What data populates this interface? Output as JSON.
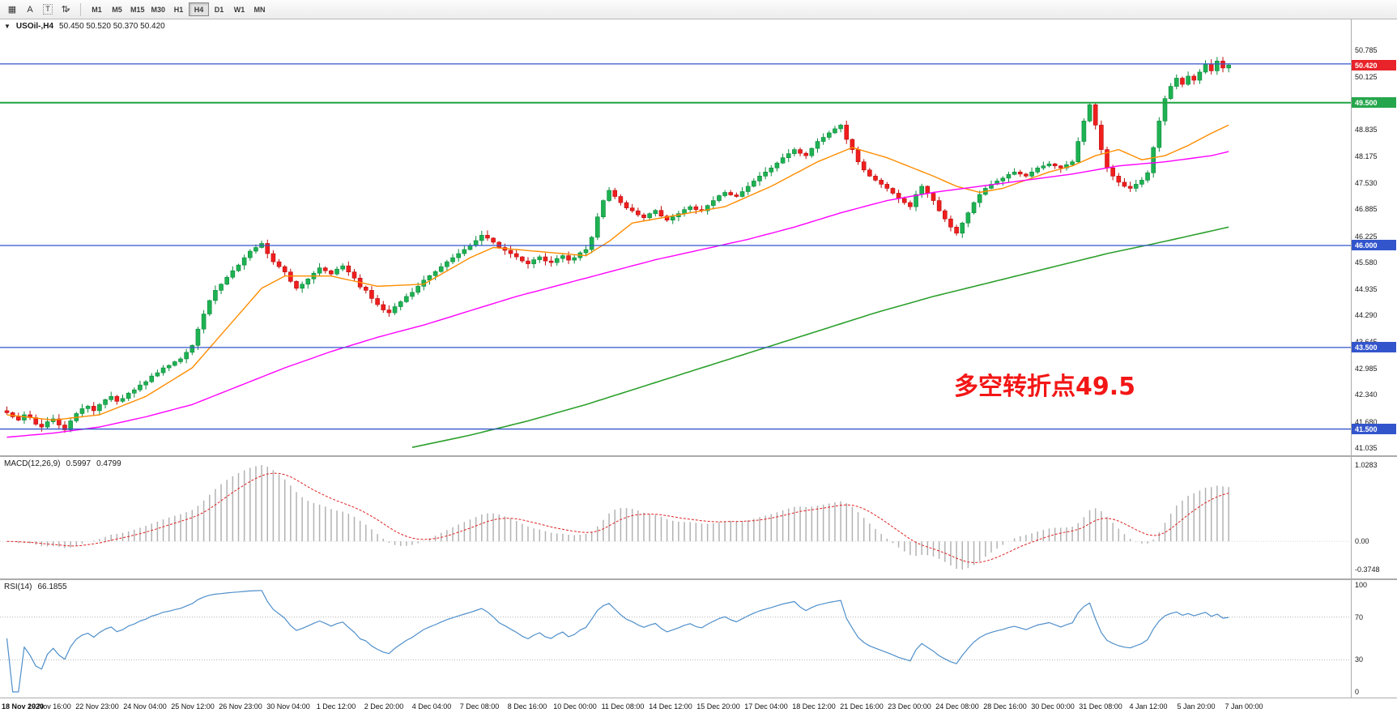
{
  "toolbar": {
    "tools": [
      {
        "name": "charts-grid-icon",
        "glyph": "▦"
      },
      {
        "name": "cursor-tool",
        "glyph": "A"
      },
      {
        "name": "text-tool",
        "glyph": "T",
        "boxed": true
      },
      {
        "name": "scale-arrows-tool",
        "glyph": "⇅",
        "caret": "▾"
      }
    ],
    "timeframes": [
      "M1",
      "M5",
      "M15",
      "M30",
      "H1",
      "H4",
      "D1",
      "W1",
      "MN"
    ],
    "selected_timeframe": "H4"
  },
  "chart": {
    "symbol_marker": "▼",
    "symbol": "USOil-,H4",
    "ohlc_text": "50.450 50.520 50.370 50.420",
    "annotation": {
      "text": "多空转折点49.5",
      "color": "#f31616"
    },
    "colors": {
      "candle_up": "#1eb252",
      "candle_up_border": "#0c8a3c",
      "candle_down": "#f01e1e",
      "candle_down_border": "#bd0d0d",
      "ma_fast": "#ff8c00",
      "ma_mid": "#ff00ff",
      "ma_slow": "#2ca02c",
      "line_blue": "#3355cc",
      "line_green": "#1fa342",
      "badge_red": "#e8232a",
      "badge_green": "#26a64c",
      "badge_blue": "#3355cc"
    },
    "hlines": [
      {
        "price": 50.45,
        "color": "#3355cc",
        "width": 1.3
      },
      {
        "price": 49.5,
        "color": "#1fa342",
        "width": 2
      },
      {
        "price": 46.0,
        "color": "#3355cc",
        "width": 1.3
      },
      {
        "price": 43.5,
        "color": "#3355cc",
        "width": 1.3
      },
      {
        "price": 41.5,
        "color": "#3355cc",
        "width": 1.3
      }
    ],
    "price_scale": {
      "ticks": [
        "50.785",
        "50.125",
        "48.835",
        "48.175",
        "47.530",
        "46.885",
        "46.225",
        "45.580",
        "44.935",
        "44.290",
        "43.645",
        "42.985",
        "42.340",
        "41.680",
        "41.035"
      ],
      "badges": [
        {
          "text": "50.420",
          "price": 50.42,
          "color": "#e8232a"
        },
        {
          "text": "49.500",
          "price": 49.5,
          "color": "#26a64c"
        },
        {
          "text": "46.000",
          "price": 46.0,
          "color": "#3355cc"
        },
        {
          "text": "43.500",
          "price": 43.5,
          "color": "#3355cc"
        },
        {
          "text": "41.500",
          "price": 41.5,
          "color": "#3355cc"
        }
      ]
    }
  },
  "chart_data": {
    "type": "candlestick",
    "symbol": "USOil",
    "timeframe": "H4",
    "price_range": [
      41.035,
      50.785
    ],
    "x_labels": [
      "18 Nov 2020",
      "19 Nov 16:00",
      "22 Nov 23:00",
      "24 Nov 04:00",
      "25 Nov 12:00",
      "26 Nov 23:00",
      "30 Nov 04:00",
      "1 Dec 12:00",
      "2 Dec 20:00",
      "4 Dec 04:00",
      "7 Dec 08:00",
      "8 Dec 16:00",
      "10 Dec 00:00",
      "11 Dec 08:00",
      "14 Dec 12:00",
      "15 Dec 20:00",
      "17 Dec 04:00",
      "18 Dec 12:00",
      "21 Dec 16:00",
      "23 Dec 00:00",
      "24 Dec 08:00",
      "28 Dec 16:00",
      "30 Dec 00:00",
      "31 Dec 08:00",
      "4 Jan 12:00",
      "5 Jan 20:00",
      "7 Jan 00:00"
    ],
    "closes": [
      41.9,
      41.8,
      41.72,
      41.85,
      41.78,
      41.62,
      41.55,
      41.68,
      41.75,
      41.6,
      41.48,
      41.7,
      41.88,
      42.0,
      42.06,
      41.95,
      42.1,
      42.22,
      42.3,
      42.18,
      42.25,
      42.38,
      42.46,
      42.58,
      42.66,
      42.8,
      42.88,
      43.0,
      43.06,
      43.15,
      43.22,
      43.38,
      43.55,
      43.95,
      44.32,
      44.65,
      44.9,
      45.05,
      45.22,
      45.38,
      45.52,
      45.7,
      45.86,
      45.95,
      46.05,
      45.8,
      45.6,
      45.48,
      45.35,
      45.12,
      44.95,
      45.05,
      45.18,
      45.32,
      45.45,
      45.38,
      45.3,
      45.42,
      45.5,
      45.35,
      45.2,
      44.98,
      44.9,
      44.7,
      44.55,
      44.42,
      44.35,
      44.5,
      44.62,
      44.75,
      44.85,
      45.0,
      45.15,
      45.26,
      45.36,
      45.48,
      45.6,
      45.7,
      45.8,
      45.9,
      46.0,
      46.12,
      46.25,
      46.18,
      46.08,
      45.95,
      45.88,
      45.8,
      45.72,
      45.62,
      45.55,
      45.65,
      45.72,
      45.62,
      45.58,
      45.68,
      45.75,
      45.64,
      45.7,
      45.82,
      45.9,
      46.2,
      46.7,
      47.1,
      47.35,
      47.2,
      47.05,
      46.92,
      46.85,
      46.75,
      46.68,
      46.78,
      46.86,
      46.72,
      46.62,
      46.7,
      46.78,
      46.88,
      46.95,
      46.88,
      46.85,
      46.98,
      47.1,
      47.22,
      47.3,
      47.24,
      47.2,
      47.32,
      47.45,
      47.58,
      47.7,
      47.8,
      47.9,
      48.02,
      48.15,
      48.25,
      48.35,
      48.26,
      48.2,
      48.38,
      48.55,
      48.65,
      48.76,
      48.86,
      48.95,
      48.6,
      48.35,
      48.05,
      47.85,
      47.7,
      47.6,
      47.5,
      47.4,
      47.28,
      47.15,
      47.05,
      46.95,
      47.25,
      47.45,
      47.28,
      47.1,
      46.85,
      46.65,
      46.45,
      46.3,
      46.55,
      46.8,
      47.05,
      47.25,
      47.4,
      47.5,
      47.58,
      47.65,
      47.74,
      47.8,
      47.75,
      47.7,
      47.8,
      47.9,
      47.95,
      48.0,
      47.95,
      47.9,
      47.98,
      48.05,
      48.55,
      49.05,
      49.45,
      48.95,
      48.35,
      47.9,
      47.7,
      47.55,
      47.45,
      47.4,
      47.5,
      47.6,
      47.78,
      48.4,
      49.05,
      49.6,
      49.9,
      50.1,
      49.95,
      50.15,
      50.05,
      50.25,
      50.45,
      50.28,
      50.52,
      50.35,
      50.42
    ],
    "moving_averages": {
      "fast_orange": {
        "anchors": [
          [
            0,
            41.85
          ],
          [
            8,
            41.72
          ],
          [
            16,
            41.85
          ],
          [
            24,
            42.3
          ],
          [
            32,
            43.0
          ],
          [
            40,
            44.3
          ],
          [
            44,
            44.95
          ],
          [
            48,
            45.25
          ],
          [
            56,
            45.25
          ],
          [
            64,
            45.0
          ],
          [
            72,
            45.05
          ],
          [
            80,
            45.7
          ],
          [
            84,
            45.95
          ],
          [
            92,
            45.85
          ],
          [
            100,
            45.75
          ],
          [
            104,
            46.1
          ],
          [
            108,
            46.55
          ],
          [
            116,
            46.75
          ],
          [
            124,
            46.95
          ],
          [
            132,
            47.45
          ],
          [
            140,
            48.05
          ],
          [
            146,
            48.4
          ],
          [
            152,
            48.15
          ],
          [
            160,
            47.7
          ],
          [
            164,
            47.45
          ],
          [
            168,
            47.3
          ],
          [
            172,
            47.4
          ],
          [
            176,
            47.6
          ],
          [
            180,
            47.8
          ],
          [
            184,
            47.95
          ],
          [
            188,
            48.2
          ],
          [
            192,
            48.35
          ],
          [
            196,
            48.1
          ],
          [
            200,
            48.2
          ],
          [
            204,
            48.45
          ],
          [
            208,
            48.75
          ],
          [
            211,
            48.95
          ]
        ]
      },
      "mid_magenta": {
        "anchors": [
          [
            0,
            41.3
          ],
          [
            8,
            41.4
          ],
          [
            16,
            41.55
          ],
          [
            24,
            41.8
          ],
          [
            32,
            42.1
          ],
          [
            40,
            42.55
          ],
          [
            48,
            43.0
          ],
          [
            56,
            43.4
          ],
          [
            64,
            43.75
          ],
          [
            72,
            44.05
          ],
          [
            80,
            44.4
          ],
          [
            88,
            44.75
          ],
          [
            96,
            45.05
          ],
          [
            104,
            45.35
          ],
          [
            112,
            45.65
          ],
          [
            120,
            45.9
          ],
          [
            128,
            46.15
          ],
          [
            136,
            46.45
          ],
          [
            144,
            46.8
          ],
          [
            152,
            47.1
          ],
          [
            160,
            47.3
          ],
          [
            168,
            47.45
          ],
          [
            176,
            47.6
          ],
          [
            184,
            47.75
          ],
          [
            192,
            47.95
          ],
          [
            200,
            48.05
          ],
          [
            208,
            48.2
          ],
          [
            211,
            48.3
          ]
        ]
      },
      "slow_green": {
        "anchors": [
          [
            70,
            41.05
          ],
          [
            80,
            41.35
          ],
          [
            90,
            41.7
          ],
          [
            100,
            42.1
          ],
          [
            110,
            42.55
          ],
          [
            120,
            43.0
          ],
          [
            130,
            43.45
          ],
          [
            140,
            43.9
          ],
          [
            150,
            44.35
          ],
          [
            160,
            44.75
          ],
          [
            170,
            45.1
          ],
          [
            180,
            45.45
          ],
          [
            190,
            45.8
          ],
          [
            200,
            46.1
          ],
          [
            211,
            46.45
          ]
        ]
      }
    },
    "indicators": {
      "macd": {
        "label": "MACD(12,26,9)",
        "main_value": "0.5997",
        "signal_value": "0.4799",
        "fast": 12,
        "slow": 26,
        "signal": 9,
        "axis_labels": [
          "1.0283",
          "0.00",
          "-0.3748"
        ]
      },
      "rsi": {
        "label": "RSI(14)",
        "value": "66.1855",
        "period": 14,
        "levels": [
          70,
          30
        ],
        "axis_labels": [
          "100",
          "70",
          "30",
          "0"
        ]
      }
    }
  }
}
